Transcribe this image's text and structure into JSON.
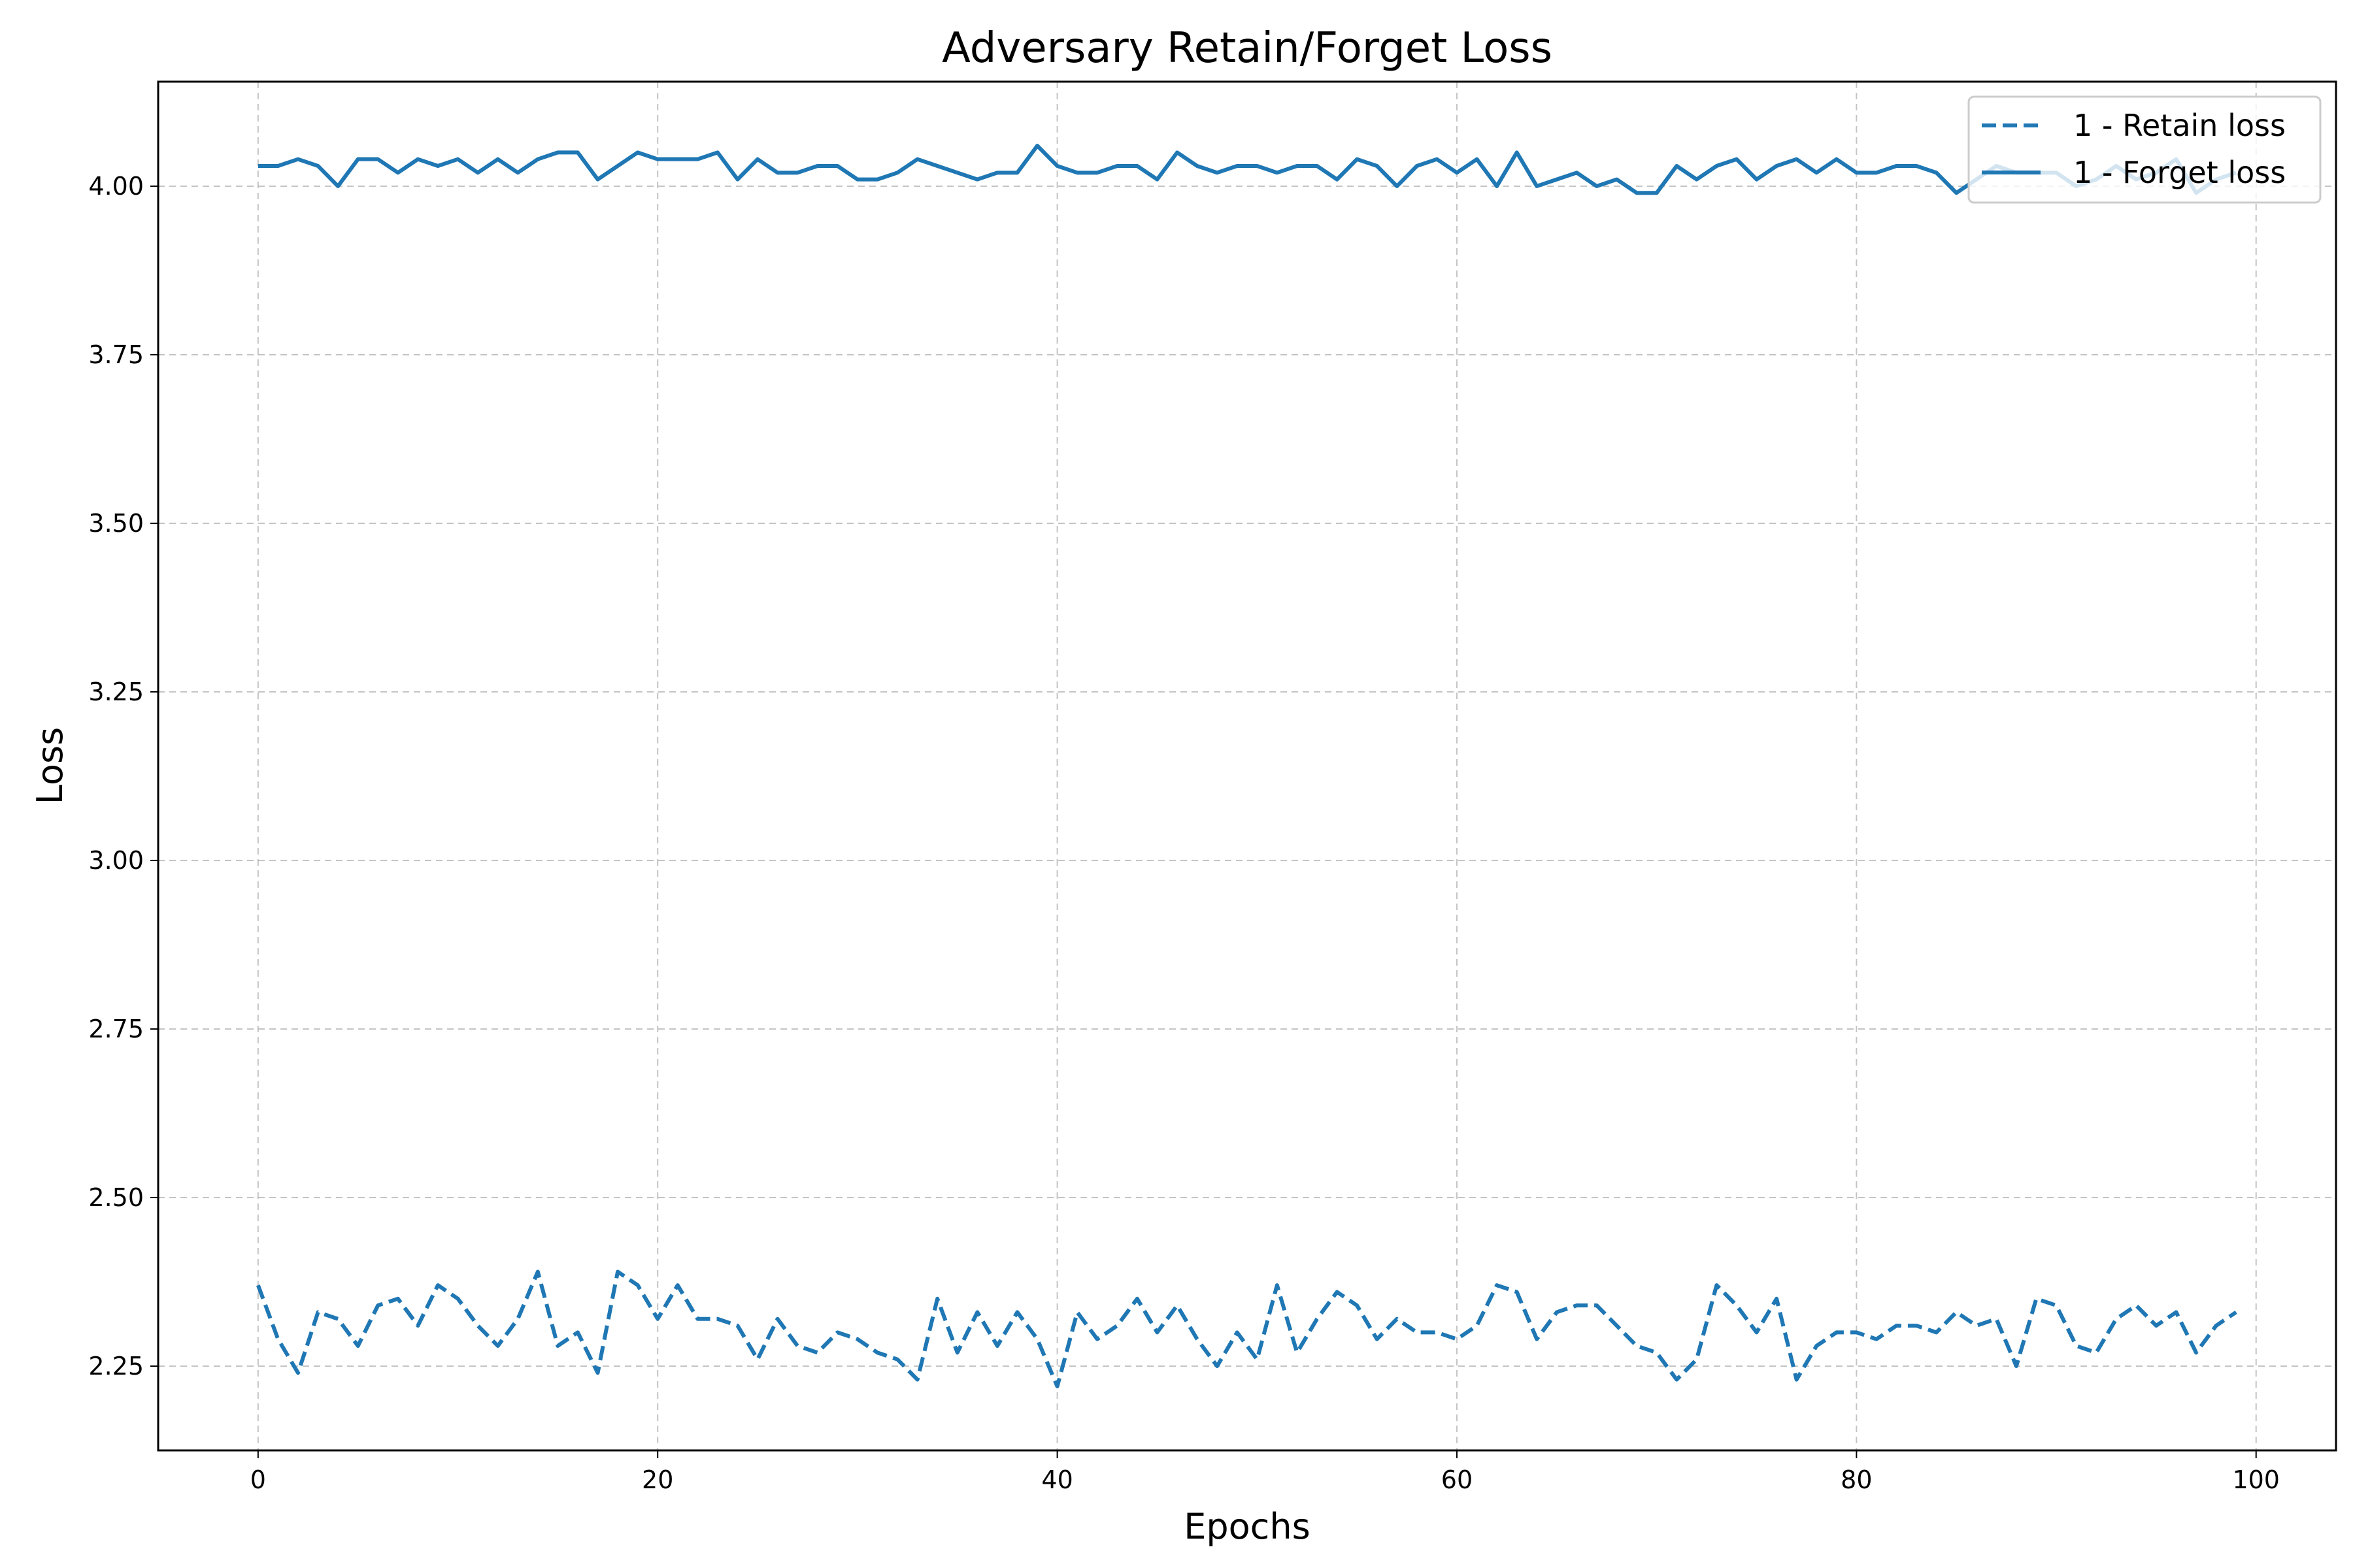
{
  "chart_data": {
    "type": "line",
    "title": "Adversary Retain/Forget Loss",
    "xlabel": "Epochs",
    "ylabel": "Loss",
    "xlim": [
      -5,
      104
    ],
    "ylim": [
      2.125,
      4.155
    ],
    "xticks": [
      0,
      20,
      40,
      60,
      80,
      100
    ],
    "yticks": [
      2.25,
      2.5,
      2.75,
      3.0,
      3.25,
      3.5,
      3.75,
      4.0
    ],
    "xtick_labels": [
      "0",
      "20",
      "40",
      "60",
      "80",
      "100"
    ],
    "ytick_labels": [
      "2.25",
      "2.50",
      "2.75",
      "3.00",
      "3.25",
      "3.50",
      "3.75",
      "4.00"
    ],
    "grid": true,
    "legend_position": "top-right",
    "x": [
      0,
      1,
      2,
      3,
      4,
      5,
      6,
      7,
      8,
      9,
      10,
      11,
      12,
      13,
      14,
      15,
      16,
      17,
      18,
      19,
      20,
      21,
      22,
      23,
      24,
      25,
      26,
      27,
      28,
      29,
      30,
      31,
      32,
      33,
      34,
      35,
      36,
      37,
      38,
      39,
      40,
      41,
      42,
      43,
      44,
      45,
      46,
      47,
      48,
      49,
      50,
      51,
      52,
      53,
      54,
      55,
      56,
      57,
      58,
      59,
      60,
      61,
      62,
      63,
      64,
      65,
      66,
      67,
      68,
      69,
      70,
      71,
      72,
      73,
      74,
      75,
      76,
      77,
      78,
      79,
      80,
      81,
      82,
      83,
      84,
      85,
      86,
      87,
      88,
      89,
      90,
      91,
      92,
      93,
      94,
      95,
      96,
      97,
      98,
      99
    ],
    "series": [
      {
        "name": "1 - Retain loss",
        "style": "dashed",
        "color": "#1f77b4",
        "values": [
          2.37,
          2.29,
          2.24,
          2.33,
          2.32,
          2.28,
          2.34,
          2.35,
          2.31,
          2.37,
          2.35,
          2.31,
          2.28,
          2.32,
          2.39,
          2.28,
          2.3,
          2.24,
          2.39,
          2.37,
          2.32,
          2.37,
          2.32,
          2.32,
          2.31,
          2.26,
          2.32,
          2.28,
          2.27,
          2.3,
          2.29,
          2.27,
          2.26,
          2.23,
          2.35,
          2.27,
          2.33,
          2.28,
          2.33,
          2.29,
          2.22,
          2.33,
          2.29,
          2.31,
          2.35,
          2.3,
          2.34,
          2.29,
          2.25,
          2.3,
          2.26,
          2.37,
          2.27,
          2.32,
          2.36,
          2.34,
          2.29,
          2.32,
          2.3,
          2.3,
          2.29,
          2.31,
          2.37,
          2.36,
          2.29,
          2.33,
          2.34,
          2.34,
          2.31,
          2.28,
          2.27,
          2.23,
          2.26,
          2.37,
          2.34,
          2.3,
          2.35,
          2.23,
          2.28,
          2.3,
          2.3,
          2.29,
          2.31,
          2.31,
          2.3,
          2.33,
          2.31,
          2.32,
          2.25,
          2.35,
          2.34,
          2.28,
          2.27,
          2.32,
          2.34,
          2.31,
          2.33,
          2.27,
          2.31,
          2.33
        ]
      },
      {
        "name": "1 - Forget loss",
        "style": "solid",
        "color": "#1f77b4",
        "values": [
          4.03,
          4.03,
          4.04,
          4.03,
          4.0,
          4.04,
          4.04,
          4.02,
          4.04,
          4.03,
          4.04,
          4.02,
          4.04,
          4.02,
          4.04,
          4.05,
          4.05,
          4.01,
          4.03,
          4.05,
          4.04,
          4.04,
          4.04,
          4.05,
          4.01,
          4.04,
          4.02,
          4.02,
          4.03,
          4.03,
          4.01,
          4.01,
          4.02,
          4.04,
          4.03,
          4.02,
          4.01,
          4.02,
          4.02,
          4.06,
          4.03,
          4.02,
          4.02,
          4.03,
          4.03,
          4.01,
          4.05,
          4.03,
          4.02,
          4.03,
          4.03,
          4.02,
          4.03,
          4.03,
          4.01,
          4.04,
          4.03,
          4.0,
          4.03,
          4.04,
          4.02,
          4.04,
          4.0,
          4.05,
          4.0,
          4.01,
          4.02,
          4.0,
          4.01,
          3.99,
          3.99,
          4.03,
          4.01,
          4.03,
          4.04,
          4.01,
          4.03,
          4.04,
          4.02,
          4.04,
          4.02,
          4.02,
          4.03,
          4.03,
          4.02,
          3.99,
          4.01,
          4.03,
          4.02,
          4.02,
          4.02,
          4.0,
          4.01,
          4.03,
          4.01,
          4.02,
          4.04,
          3.99,
          4.01,
          4.02
        ]
      }
    ]
  }
}
